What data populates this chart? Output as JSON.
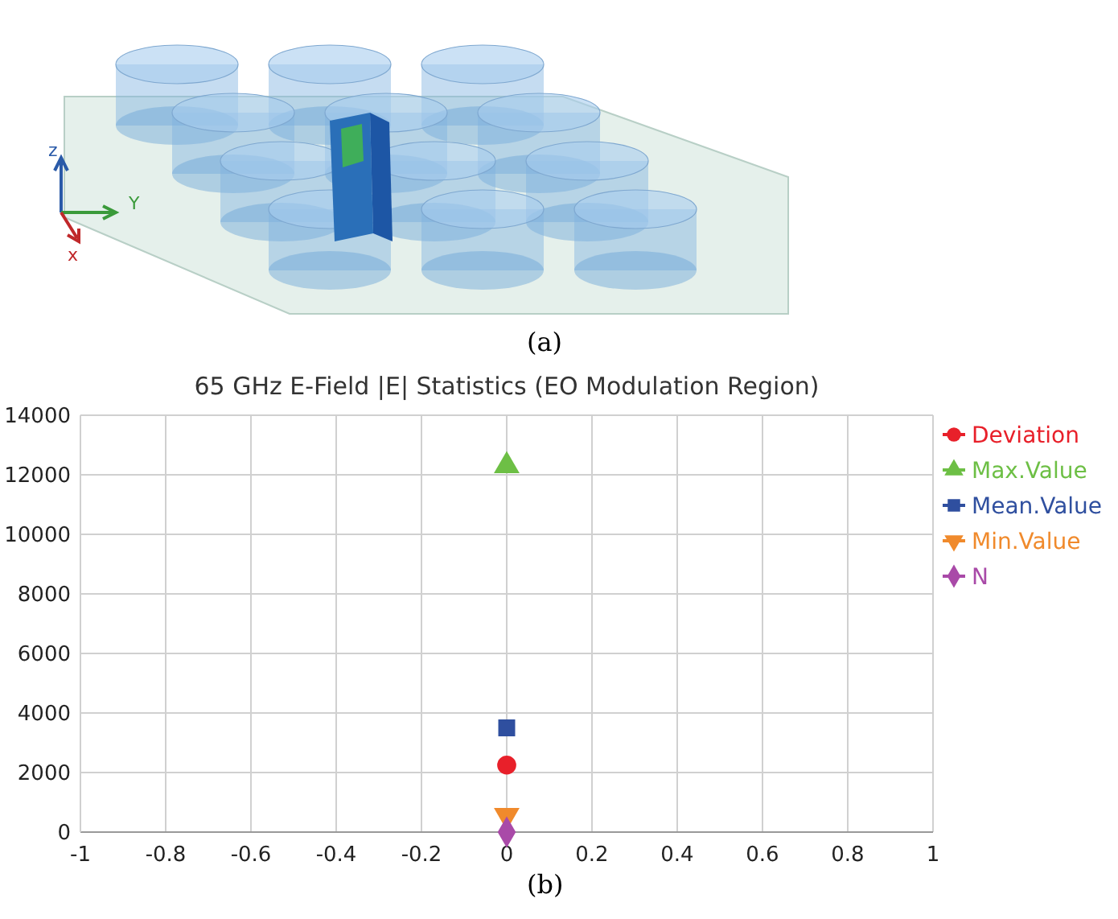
{
  "chart_data": {
    "type": "scatter",
    "title": "65 GHz E-Field |E| Statistics (EO Modulation Region)",
    "xlim": [
      -1,
      1
    ],
    "xticks": [
      -1,
      -0.8,
      -0.6,
      -0.4,
      -0.2,
      0,
      0.2,
      0.4,
      0.6,
      0.8,
      1
    ],
    "ylim": [
      0,
      14000
    ],
    "yticks": [
      0,
      2000,
      4000,
      6000,
      8000,
      10000,
      12000,
      14000
    ],
    "grid": true,
    "legend": "top right",
    "x": [
      0
    ],
    "annotations": [
      "(a)",
      "(b)",
      "z",
      "Y",
      "x"
    ],
    "series": [
      {
        "name": "Deviation",
        "color": "#e8202a",
        "values": [
          2250
        ],
        "marker": "circle"
      },
      {
        "name": "Max.Value",
        "color": "#6dbf45",
        "values": [
          12300
        ],
        "marker": "triangle"
      },
      {
        "name": "Mean.Value",
        "color": "#2f4f9f",
        "values": [
          3500
        ],
        "marker": "square"
      },
      {
        "name": "Min.Value",
        "color": "#f08a2c",
        "values": [
          560
        ],
        "marker": "triangle-down"
      },
      {
        "name": "N",
        "color": "#a94aa8",
        "values": [
          0
        ],
        "marker": "diamond"
      }
    ]
  }
}
